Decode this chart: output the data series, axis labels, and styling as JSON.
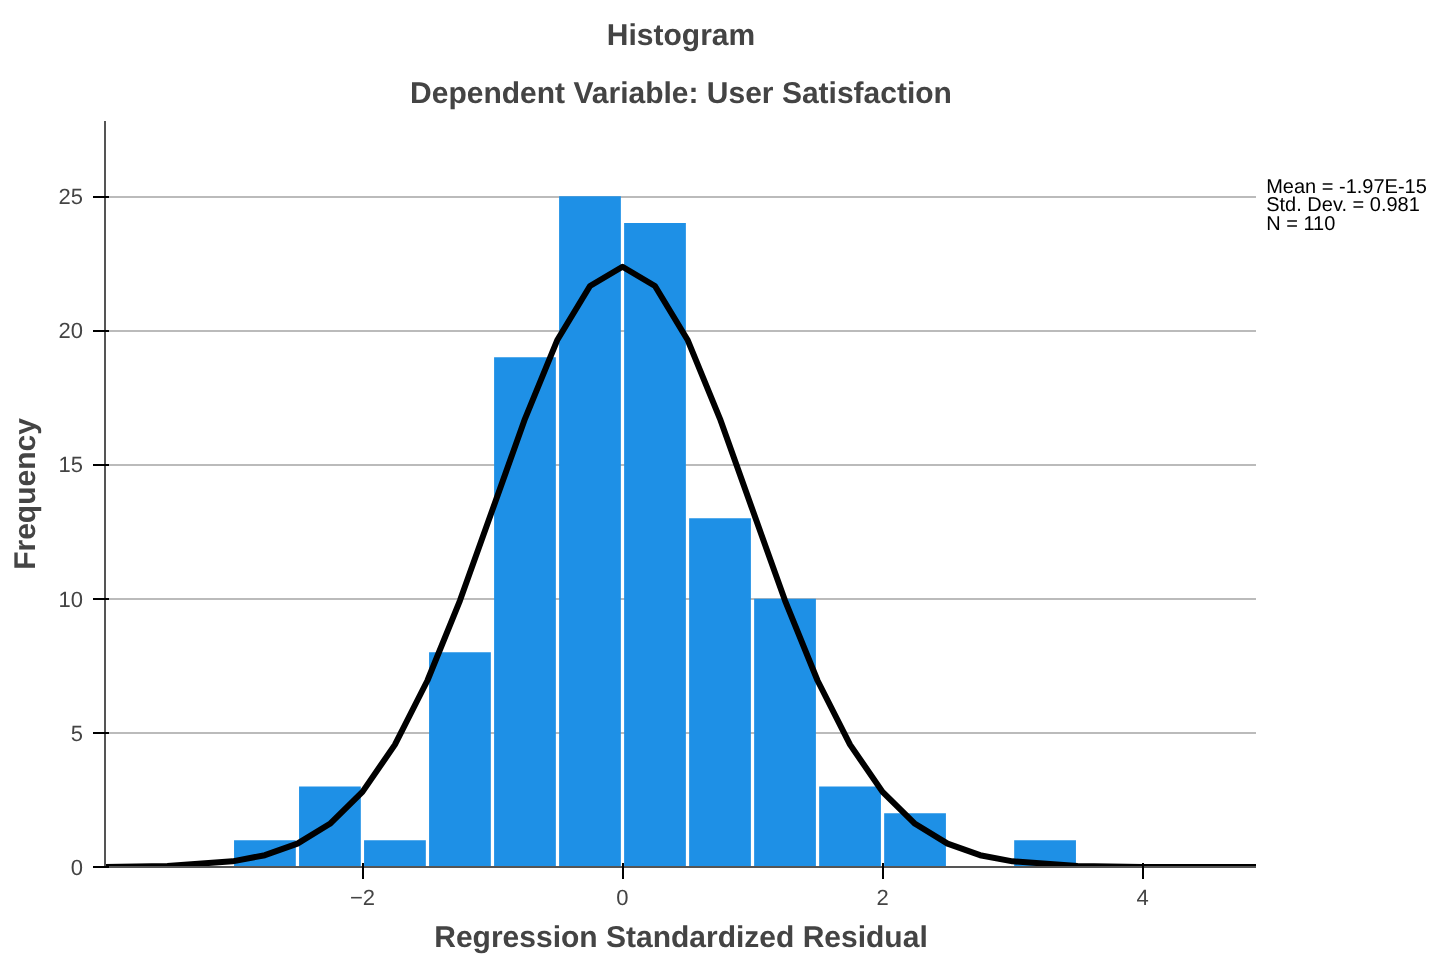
{
  "chart_data": {
    "type": "histogram",
    "title": "Histogram",
    "subtitle": "Dependent Variable: User Satisfaction",
    "xlabel": "Regression Standardized Residual",
    "ylabel": "Frequency",
    "xlim": [
      -3.98,
      4.88
    ],
    "ylim": [
      0,
      27.8
    ],
    "xticks": [
      -2,
      0,
      2,
      4
    ],
    "yticks": [
      0,
      5,
      10,
      15,
      20,
      25
    ],
    "grid": "y",
    "annotations": [
      "Mean = -1.97E-15",
      "Std. Dev. = 0.981",
      "N = 110"
    ],
    "series": [
      {
        "color": "#1e90e6",
        "bins": [
          -3,
          -2.5,
          -2,
          -1.5,
          -1,
          -0.5,
          0,
          0.5,
          1,
          1.5,
          2,
          2.5,
          3,
          3.5
        ],
        "values": [
          1,
          3,
          1,
          8,
          19,
          25,
          24,
          13,
          10,
          3,
          2,
          0,
          1
        ]
      },
      {
        "type": "line",
        "color": "#000000",
        "x": [
          -3.98,
          -3.5,
          -3,
          -2.75,
          -2.5,
          -2.25,
          -2,
          -1.75,
          -1.5,
          -1.25,
          -1,
          -0.75,
          -0.5,
          -0.25,
          0,
          0.25,
          0.5,
          0.75,
          1,
          1.25,
          1.5,
          1.75,
          2,
          2.25,
          2.5,
          2.75,
          3,
          3.5,
          4,
          4.88
        ],
        "values": [
          0,
          0.04,
          0.21,
          0.44,
          0.87,
          1.61,
          2.8,
          4.56,
          6.95,
          9.93,
          13.31,
          16.7,
          19.65,
          21.65,
          22.37,
          21.65,
          19.65,
          16.7,
          13.31,
          9.93,
          6.95,
          4.56,
          2.8,
          1.61,
          0.87,
          0.44,
          0.21,
          0.04,
          0,
          0
        ]
      }
    ]
  }
}
